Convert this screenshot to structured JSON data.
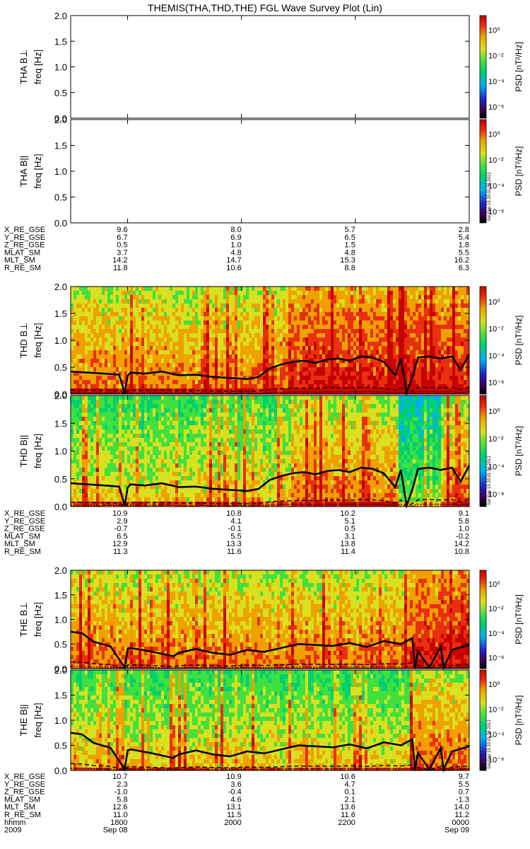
{
  "title": "THEMIS(THA,THD,THE) FGL Wave Survey Plot (Lin)",
  "colors": {
    "palette": [
      "#000000",
      "#3a0050",
      "#2020c0",
      "#00b0f0",
      "#00d070",
      "#40e040",
      "#d8e020",
      "#f0a000",
      "#e83010",
      "#c80000"
    ],
    "trace": "#000000",
    "frame": "#000000"
  },
  "stamp": "Sat Sep 15 20:01:36 2012",
  "colorbar": {
    "label": "PSD [nT²/Hz]",
    "ticks": [
      "10⁰",
      "10⁻²",
      "10⁻⁴",
      "10⁻⁶"
    ]
  },
  "chart_data": [
    {
      "type": "heatmap",
      "probe": "THA",
      "panels": [
        {
          "ylabel_component": "THA B⊥",
          "ylabel_unit": "freq [Hz]",
          "ylim": [
            0,
            2
          ],
          "yticks": [
            "2.0",
            "1.5",
            "1.0",
            "0.5",
            "0.0"
          ],
          "has_data": false
        },
        {
          "ylabel_component": "THA B||",
          "ylabel_unit": "freq [Hz]",
          "ylim": [
            0,
            2
          ],
          "yticks": [
            "2.0",
            "1.5",
            "1.0",
            "0.5",
            "0.0"
          ],
          "has_data": false
        }
      ],
      "ephemeris": [
        {
          "label": "X_RE_GSE",
          "values": [
            "9.6",
            "8.0",
            "5.7",
            "2.8"
          ]
        },
        {
          "label": "Y_RE_GSE",
          "values": [
            "6.7",
            "6.9",
            "6.5",
            "5.4"
          ]
        },
        {
          "label": "Z_RE_GSE",
          "values": [
            "0.5",
            "1.0",
            "1.5",
            "1.8"
          ]
        },
        {
          "label": "MLAT_SM",
          "values": [
            "3.7",
            "4.8",
            "4.8",
            "5.5"
          ]
        },
        {
          "label": "MLT_SM",
          "values": [
            "14.2",
            "14.7",
            "15.3",
            "16.2"
          ]
        },
        {
          "label": "R_RE_SM",
          "values": [
            "11.8",
            "10.6",
            "8.8",
            "6.3"
          ]
        }
      ]
    },
    {
      "type": "heatmap",
      "probe": "THD",
      "panels": [
        {
          "ylabel_component": "THD B⊥",
          "ylabel_unit": "freq [Hz]",
          "ylim": [
            0,
            2
          ],
          "yticks": [
            "2.0",
            "1.5",
            "1.0",
            "0.5",
            "0.0"
          ],
          "has_data": true
        },
        {
          "ylabel_component": "THD B||",
          "ylabel_unit": "freq [Hz]",
          "ylim": [
            0,
            2
          ],
          "yticks": [
            "2.0",
            "1.5",
            "1.0",
            "0.5",
            "0.0"
          ],
          "has_data": true
        }
      ],
      "gyrofrequency_x_hours": [
        17.0,
        17.3,
        17.6,
        17.85,
        17.95,
        18.0,
        18.05,
        18.3,
        18.6,
        18.9,
        19.2,
        19.5,
        19.8,
        20.1,
        20.3,
        20.5,
        20.7,
        20.9,
        21.1,
        21.3,
        21.5,
        21.7,
        21.9,
        22.1,
        22.3,
        22.5,
        22.7,
        22.8,
        22.9,
        23.0,
        23.1,
        23.3,
        23.5,
        23.7,
        23.85,
        24.0
      ],
      "gyrofrequency_y_hz": [
        0.42,
        0.4,
        0.38,
        0.36,
        0.02,
        0.34,
        0.4,
        0.38,
        0.42,
        0.35,
        0.36,
        0.32,
        0.3,
        0.28,
        0.32,
        0.48,
        0.55,
        0.6,
        0.62,
        0.58,
        0.64,
        0.66,
        0.62,
        0.7,
        0.68,
        0.6,
        0.35,
        0.66,
        0.02,
        0.3,
        0.68,
        0.7,
        0.66,
        0.7,
        0.45,
        0.74
      ],
      "ephemeris": [
        {
          "label": "X_RE_GSE",
          "values": [
            "10.9",
            "10.8",
            "10.2",
            "9.1"
          ]
        },
        {
          "label": "Y_RE_GSE",
          "values": [
            "2.9",
            "4.1",
            "5.1",
            "5.8"
          ]
        },
        {
          "label": "Z_RE_GSE",
          "values": [
            "-0.7",
            "-0.1",
            "0.5",
            "1.0"
          ]
        },
        {
          "label": "MLAT_SM",
          "values": [
            "6.5",
            "5.5",
            "3.1",
            "-0.2"
          ]
        },
        {
          "label": "MLT_SM",
          "values": [
            "12.9",
            "13.3",
            "13.8",
            "14.2"
          ]
        },
        {
          "label": "R_RE_SM",
          "values": [
            "11.3",
            "11.6",
            "11.4",
            "10.8"
          ]
        }
      ]
    },
    {
      "type": "heatmap",
      "probe": "THE",
      "panels": [
        {
          "ylabel_component": "THE B⊥",
          "ylabel_unit": "freq [Hz]",
          "ylim": [
            0,
            2
          ],
          "yticks": [
            "2.0",
            "1.5",
            "1.0",
            "0.5",
            "0.0"
          ],
          "has_data": true
        },
        {
          "ylabel_component": "THE B||",
          "ylabel_unit": "freq [Hz]",
          "ylim": [
            0,
            2
          ],
          "yticks": [
            "2.0",
            "1.5",
            "1.0",
            "0.5",
            "0.0"
          ],
          "has_data": true
        }
      ],
      "gyrofrequency_x_hours": [
        17.0,
        17.2,
        17.4,
        17.7,
        17.95,
        18.0,
        18.05,
        18.4,
        18.8,
        18.9,
        19.2,
        19.5,
        19.8,
        20.1,
        20.4,
        20.7,
        21.0,
        21.3,
        21.6,
        21.9,
        22.2,
        22.5,
        22.8,
        23.0,
        23.05,
        23.1,
        23.3,
        23.5,
        23.55,
        23.7,
        24.0
      ],
      "gyrofrequency_y_hz": [
        0.75,
        0.72,
        0.55,
        0.45,
        0.02,
        0.4,
        0.42,
        0.35,
        0.25,
        0.32,
        0.4,
        0.32,
        0.28,
        0.38,
        0.34,
        0.42,
        0.5,
        0.48,
        0.46,
        0.52,
        0.44,
        0.56,
        0.5,
        0.62,
        0.02,
        0.35,
        0.02,
        0.45,
        0.02,
        0.38,
        0.48
      ],
      "ephemeris": [
        {
          "label": "X_RE_GSE",
          "values": [
            "10.7",
            "10.9",
            "10.6",
            "9.7"
          ]
        },
        {
          "label": "Y_RE_GSE",
          "values": [
            "2.3",
            "3.6",
            "4.7",
            "5.5"
          ]
        },
        {
          "label": "Z_RE_GSE",
          "values": [
            "-1.0",
            "-0.4",
            "0.1",
            "0.7"
          ]
        },
        {
          "label": "MLAT_SM",
          "values": [
            "5.8",
            "4.6",
            "2.1",
            "-1.3"
          ]
        },
        {
          "label": "MLT_SM",
          "values": [
            "12.6",
            "13.1",
            "13.6",
            "14.0"
          ]
        },
        {
          "label": "R_RE_SM",
          "values": [
            "11.0",
            "11.5",
            "11.6",
            "11.2"
          ]
        },
        {
          "label": "hhmm",
          "values": [
            "1800",
            "2000",
            "2200",
            "0000"
          ]
        }
      ]
    }
  ],
  "time_axis": {
    "year": "2009",
    "start_date": "Sep 08",
    "end_date": "Sep 09",
    "xlim_hours": [
      17.0,
      24.0
    ],
    "tick_hours": [
      18,
      20,
      22,
      24
    ]
  }
}
